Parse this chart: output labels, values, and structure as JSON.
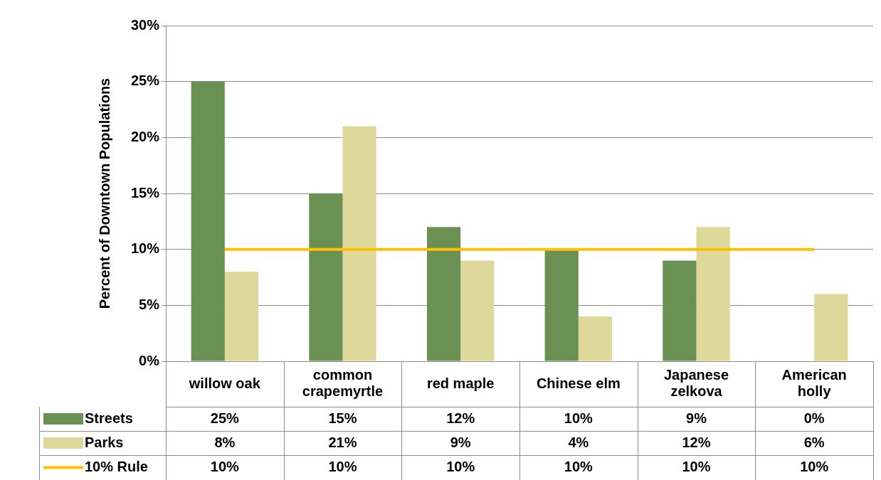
{
  "chart_data": {
    "type": "bar",
    "ylabel": "Percent of Downtown Populations",
    "categories": [
      "willow oak",
      "common crapemyrtle",
      "red maple",
      "Chinese elm",
      "Japanese zelkova",
      "American holly"
    ],
    "series": [
      {
        "name": "Streets",
        "color": "#6a9153",
        "values": [
          25,
          15,
          12,
          10,
          9,
          0
        ],
        "value_labels": [
          "25%",
          "15%",
          "12%",
          "10%",
          "9%",
          "0%"
        ]
      },
      {
        "name": "Parks",
        "color": "#dfd89b",
        "values": [
          8,
          21,
          9,
          4,
          12,
          6
        ],
        "value_labels": [
          "8%",
          "21%",
          "9%",
          "4%",
          "12%",
          "6%"
        ]
      },
      {
        "name": "10% Rule",
        "type": "line",
        "color": "#ffc000",
        "values": [
          10,
          10,
          10,
          10,
          10,
          10
        ],
        "value_labels": [
          "10%",
          "10%",
          "10%",
          "10%",
          "10%",
          "10%"
        ]
      }
    ],
    "ylim": [
      0,
      30
    ],
    "yticks": [
      {
        "value": 0,
        "label": "0%"
      },
      {
        "value": 5,
        "label": "5%"
      },
      {
        "value": 10,
        "label": "10%"
      },
      {
        "value": 15,
        "label": "15%"
      },
      {
        "value": 20,
        "label": "20%"
      },
      {
        "value": 25,
        "label": "25%"
      },
      {
        "value": 30,
        "label": "30%"
      }
    ],
    "grid": "y",
    "legend": "bottom",
    "marker": "none"
  }
}
